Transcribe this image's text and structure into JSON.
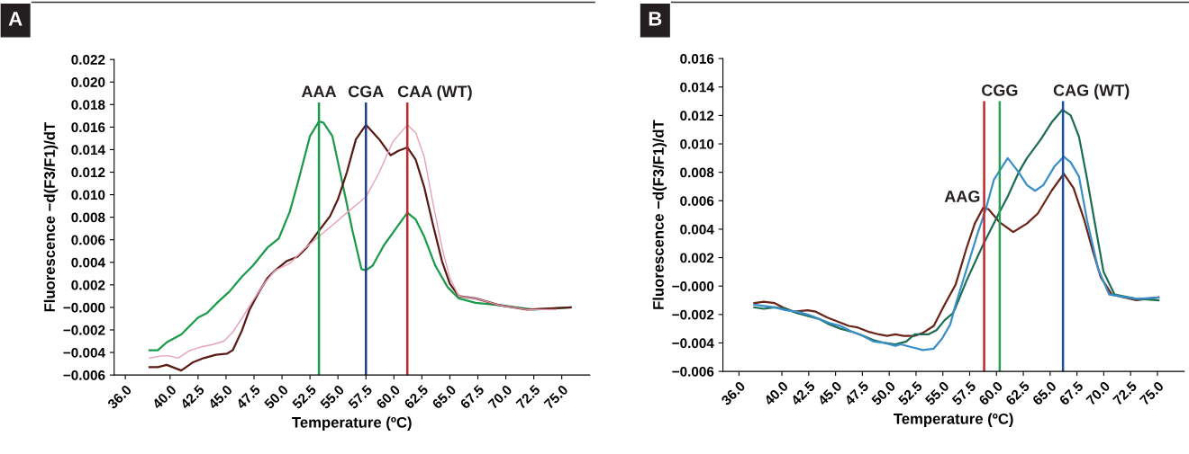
{
  "chart_data": [
    {
      "type": "line",
      "title": "A",
      "xlabel": "Temperature (ºC)",
      "ylabel": "Fluorescence −d(F3/F1)/dT",
      "xlim": [
        35,
        77.5
      ],
      "ylim": [
        -0.006,
        0.022
      ],
      "xticks": [
        {
          "value": 36,
          "label": "36.0"
        },
        {
          "value": 40,
          "label": "40.0"
        },
        42.5,
        {
          "value": 45,
          "label": "45.0"
        },
        47.5,
        {
          "value": 50,
          "label": "50.0"
        },
        52.5,
        {
          "value": 55,
          "label": "55.0"
        },
        57.5,
        {
          "value": 60,
          "label": "60.0"
        },
        62.5,
        {
          "value": 65,
          "label": "65.0"
        },
        67.5,
        {
          "value": 70,
          "label": "70.0"
        },
        72.5,
        {
          "value": 75,
          "label": "75.0"
        }
      ],
      "yticks": [
        {
          "value": -0.006,
          "label": "−0.006"
        },
        {
          "value": -0.004,
          "label": "−0.004"
        },
        {
          "value": -0.002,
          "label": "−0.002"
        },
        {
          "value": 0,
          "label": "−0.000"
        },
        0.002,
        0.004,
        0.006,
        0.008,
        {
          "value": 0.01,
          "label": "0.010"
        },
        0.012,
        0.014,
        0.016,
        0.018,
        {
          "value": 0.02,
          "label": "0.020"
        },
        0.022
      ],
      "grid": false,
      "legend": false,
      "marker": "none",
      "line_style": "solid",
      "ref_lines": [
        {
          "axis": "x",
          "value": 53.3,
          "label": "AAA",
          "color": "#1a9a4a"
        },
        {
          "axis": "x",
          "value": 57.5,
          "label": "CGA",
          "color": "#1f3f8f"
        },
        {
          "axis": "x",
          "value": 61.2,
          "label": "CAA (WT)",
          "color": "#c0282c"
        }
      ],
      "series": [
        {
          "color": "#1a9a4a",
          "x": [
            38.16,
            38.9,
            39.7,
            41.0,
            42.5,
            43.3,
            44.3,
            45.3,
            46.4,
            47.4,
            48.7,
            49.7,
            50.7,
            51.4,
            52.5,
            53.3,
            53.7,
            54.5,
            55.3,
            56.3,
            57.1,
            57.5,
            58.1,
            59.1,
            60.4,
            61.2,
            61.95,
            62.7,
            63.7,
            64.8,
            65.8,
            67.3,
            69.4,
            70.9,
            72.5,
            75.8
          ],
          "values": [
            -0.0038,
            -0.0038,
            -0.0031,
            -0.0024,
            -0.0009,
            -0.0005,
            0.0005,
            0.0014,
            0.0027,
            0.0037,
            0.0053,
            0.0061,
            0.0085,
            0.011,
            0.0152,
            0.0165,
            0.0164,
            0.0152,
            0.0115,
            0.0068,
            0.0034,
            0.0033,
            0.0037,
            0.0055,
            0.0073,
            0.0084,
            0.0078,
            0.0063,
            0.0037,
            0.0018,
            0.0008,
            0.0004,
            0.0002,
            0.0,
            -0.0002,
            0.0
          ]
        },
        {
          "color": "#5a1a14",
          "x": [
            38.16,
            38.9,
            39.7,
            41.0,
            42.0,
            43.0,
            44.1,
            45.1,
            45.6,
            46.4,
            47.1,
            47.9,
            48.7,
            49.4,
            50.4,
            51.4,
            52.2,
            53.3,
            54.3,
            55.0,
            55.8,
            56.6,
            57.5,
            58.7,
            59.7,
            60.4,
            61.2,
            61.95,
            62.7,
            63.5,
            64.3,
            65.0,
            65.8,
            67.3,
            69.4,
            71.9,
            75.8
          ],
          "values": [
            -0.0053,
            -0.0053,
            -0.0051,
            -0.0056,
            -0.0049,
            -0.0045,
            -0.0042,
            -0.0041,
            -0.0038,
            -0.0021,
            -0.0002,
            0.0013,
            0.0026,
            0.0033,
            0.0041,
            0.0045,
            0.0053,
            0.0068,
            0.0081,
            0.0096,
            0.012,
            0.0149,
            0.0162,
            0.0149,
            0.0135,
            0.0139,
            0.0142,
            0.0131,
            0.0107,
            0.0073,
            0.0041,
            0.0021,
            0.001,
            0.0008,
            0.0002,
            -0.0002,
            0.0
          ]
        },
        {
          "color": "#e8a0b8",
          "x": [
            38.16,
            39.2,
            39.9,
            40.7,
            41.8,
            42.8,
            43.8,
            44.8,
            45.6,
            46.4,
            47.4,
            48.4,
            49.4,
            50.7,
            52.0,
            53.3,
            54.5,
            55.8,
            57.5,
            58.7,
            59.9,
            61.2,
            61.95,
            62.7,
            63.5,
            64.3,
            65.0,
            65.8,
            67.3,
            69.4,
            71.9,
            74.5
          ],
          "values": [
            -0.0045,
            -0.0043,
            -0.0043,
            -0.0045,
            -0.0038,
            -0.0035,
            -0.0033,
            -0.003,
            -0.0022,
            -0.001,
            0.0006,
            0.0021,
            0.0033,
            0.0039,
            0.0052,
            0.0063,
            0.0073,
            0.0084,
            0.0098,
            0.012,
            0.0147,
            0.0162,
            0.0155,
            0.0134,
            0.0092,
            0.0053,
            0.0026,
            0.001,
            0.0008,
            0.0002,
            -0.0002,
            -0.0002
          ]
        }
      ]
    },
    {
      "type": "line",
      "title": "B",
      "xlabel": "Temperature (ºC)",
      "ylabel": "Fluorescence −d(F3/F1)/dT",
      "xlim": [
        34.5,
        77.5
      ],
      "ylim": [
        -0.006,
        0.016
      ],
      "xticks": [
        {
          "value": 36,
          "label": "36.0"
        },
        {
          "value": 40,
          "label": "40.0"
        },
        42.5,
        {
          "value": 45,
          "label": "45.0"
        },
        47.5,
        {
          "value": 50,
          "label": "50.0"
        },
        52.5,
        {
          "value": 55,
          "label": "55.0"
        },
        57.5,
        {
          "value": 60,
          "label": "60.0"
        },
        62.5,
        {
          "value": 65,
          "label": "65.0"
        },
        67.5,
        {
          "value": 70,
          "label": "70.0"
        },
        72.5,
        {
          "value": 75,
          "label": "75.0"
        }
      ],
      "yticks": [
        {
          "value": -0.006,
          "label": "−0.006"
        },
        {
          "value": -0.004,
          "label": "−0.004"
        },
        {
          "value": -0.002,
          "label": "−0.002"
        },
        {
          "value": 0,
          "label": "−0.000"
        },
        0.002,
        0.004,
        0.006,
        0.008,
        {
          "value": 0.01,
          "label": "0.010"
        },
        0.012,
        0.014,
        0.016
      ],
      "grid": false,
      "legend": false,
      "marker": "none",
      "line_style": "solid",
      "ref_lines": [
        {
          "axis": "x",
          "value": 58.85,
          "color": "#c0282c"
        },
        {
          "axis": "x",
          "value": 60.3,
          "label": "CGG",
          "color": "#2aa05a"
        },
        {
          "axis": "x",
          "value": 66.2,
          "label": "CAG (WT)",
          "color": "#1f4f9f"
        }
      ],
      "annotations": [
        {
          "text": "AAG",
          "x": 58.85,
          "y": 0.0055
        }
      ],
      "series": [
        {
          "color": "#6b2418",
          "x": [
            37.42,
            38.31,
            39.33,
            40.1,
            41.13,
            42.4,
            43.16,
            44.19,
            45.21,
            46.23,
            47.0,
            48.02,
            49.04,
            49.81,
            50.57,
            51.34,
            52.36,
            53.13,
            54.15,
            55.17,
            56.19,
            57.22,
            57.98,
            58.75,
            59.26,
            60.28,
            61.56,
            62.84,
            63.85,
            65.13,
            66.28,
            67.18,
            68.2,
            68.97,
            69.73,
            70.75,
            73.05,
            75.1
          ],
          "values": [
            -0.0012,
            -0.0011,
            -0.0012,
            -0.0015,
            -0.0018,
            -0.0017,
            -0.0018,
            -0.0022,
            -0.0025,
            -0.0028,
            -0.0029,
            -0.0032,
            -0.0034,
            -0.0035,
            -0.0034,
            -0.0035,
            -0.0035,
            -0.0033,
            -0.0028,
            -0.0013,
            0.0001,
            0.0027,
            0.0044,
            0.0055,
            0.0054,
            0.0045,
            0.0038,
            0.0044,
            0.0051,
            0.0067,
            0.0079,
            0.0069,
            0.0046,
            0.0025,
            0.0006,
            -0.0006,
            -0.001,
            -0.0008
          ]
        },
        {
          "color": "#1b6e55",
          "x": [
            37.42,
            38.31,
            39.33,
            40.36,
            41.38,
            42.4,
            43.42,
            44.44,
            45.46,
            46.49,
            47.26,
            48.53,
            49.56,
            50.57,
            51.59,
            52.36,
            53.64,
            54.41,
            55.17,
            55.94,
            56.19,
            57.22,
            58.75,
            60.28,
            61.05,
            62.07,
            62.84,
            64.11,
            65.13,
            66.15,
            66.92,
            67.69,
            68.45,
            69.22,
            69.98,
            71.01,
            73.05,
            75.1
          ],
          "values": [
            -0.0015,
            -0.0016,
            -0.0015,
            -0.0016,
            -0.0019,
            -0.0021,
            -0.0023,
            -0.0027,
            -0.003,
            -0.0032,
            -0.0034,
            -0.0038,
            -0.004,
            -0.0041,
            -0.0039,
            -0.0034,
            -0.0034,
            -0.0031,
            -0.0024,
            -0.0019,
            -0.0015,
            0.0004,
            0.0029,
            0.0052,
            0.0063,
            0.008,
            0.009,
            0.0103,
            0.0115,
            0.0124,
            0.012,
            0.0105,
            0.0075,
            0.0042,
            0.001,
            -0.0006,
            -0.0009,
            -0.001
          ]
        },
        {
          "color": "#3a8fc8",
          "x": [
            37.42,
            38.31,
            39.33,
            40.36,
            41.38,
            42.4,
            43.42,
            44.44,
            45.46,
            46.49,
            47.51,
            48.53,
            49.56,
            50.57,
            51.08,
            52.11,
            53.13,
            54.15,
            54.92,
            55.69,
            56.19,
            57.22,
            58.24,
            59.0,
            59.77,
            61.05,
            62.07,
            62.84,
            63.6,
            64.37,
            65.39,
            66.28,
            66.92,
            67.69,
            68.45,
            69.48,
            70.5,
            73.05,
            75.1
          ],
          "values": [
            -0.0013,
            -0.0014,
            -0.0015,
            -0.0017,
            -0.0018,
            -0.002,
            -0.0023,
            -0.0026,
            -0.0028,
            -0.0032,
            -0.0035,
            -0.0039,
            -0.004,
            -0.0042,
            -0.0041,
            -0.0043,
            -0.0045,
            -0.0044,
            -0.0037,
            -0.0027,
            -0.0013,
            0.0012,
            0.0037,
            0.0054,
            0.0075,
            0.009,
            0.008,
            0.0071,
            0.0067,
            0.0071,
            0.0084,
            0.0091,
            0.0087,
            0.0077,
            0.0046,
            0.0012,
            -0.0006,
            -0.0009,
            -0.0008
          ]
        }
      ]
    }
  ]
}
